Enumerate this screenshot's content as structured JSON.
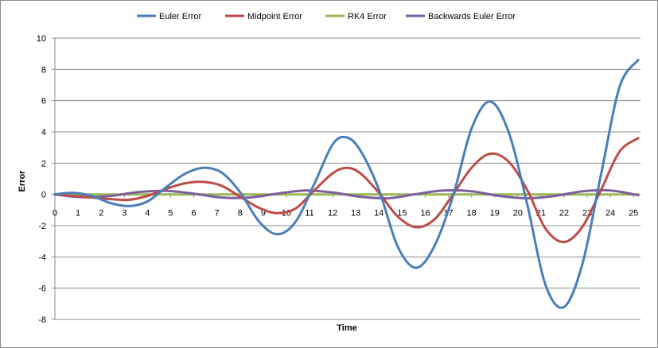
{
  "chart_data": {
    "type": "line",
    "xlabel": "Time",
    "ylabel": "Error",
    "xlim": [
      0,
      25.3
    ],
    "ylim": [
      -8,
      10
    ],
    "x_ticks": [
      "0",
      "1",
      "2",
      "3",
      "4",
      "5",
      "6",
      "7",
      "8",
      "9",
      "10",
      "11",
      "12",
      "13",
      "14",
      "15",
      "16",
      "17",
      "18",
      "19",
      "20",
      "21",
      "22",
      "23",
      "24",
      "25"
    ],
    "y_ticks": [
      "10",
      "8",
      "6",
      "4",
      "2",
      "0",
      "-2",
      "-4",
      "-6",
      "-8"
    ],
    "grid": "horizontal",
    "legend_position": "top",
    "series": [
      {
        "name": "Euler Error",
        "color": "#4a7ebb",
        "x": [
          0,
          0.8,
          1.6,
          2.4,
          3.2,
          4.0,
          4.8,
          5.6,
          6.4,
          7.2,
          8.0,
          8.8,
          9.6,
          10.4,
          11.2,
          12.0,
          12.6,
          13.2,
          14.0,
          14.8,
          15.6,
          16.4,
          17.2,
          18.0,
          18.8,
          19.6,
          20.4,
          21.2,
          22.0,
          22.8,
          23.6,
          24.4,
          25.2
        ],
        "y": [
          0,
          0.1,
          -0.1,
          -0.55,
          -0.75,
          -0.45,
          0.45,
          1.3,
          1.7,
          1.4,
          0.15,
          -1.7,
          -2.55,
          -1.75,
          0.65,
          3.2,
          3.65,
          2.8,
          0.3,
          -3.3,
          -4.7,
          -3.3,
          -0.1,
          4.2,
          5.95,
          4.0,
          -0.6,
          -5.8,
          -7.2,
          -4.4,
          1.3,
          6.9,
          8.6
        ]
      },
      {
        "name": "Midpoint Error",
        "color": "#be4b48",
        "x": [
          0,
          0.8,
          1.6,
          2.4,
          3.2,
          4.0,
          4.8,
          5.6,
          6.4,
          7.2,
          8.0,
          8.8,
          9.6,
          10.4,
          11.2,
          12.0,
          12.6,
          13.2,
          14.0,
          14.8,
          15.6,
          16.4,
          17.2,
          18.0,
          18.8,
          19.6,
          20.4,
          21.2,
          22.0,
          22.8,
          23.6,
          24.4,
          25.2
        ],
        "y": [
          0,
          -0.1,
          -0.2,
          -0.3,
          -0.35,
          -0.1,
          0.35,
          0.7,
          0.8,
          0.55,
          -0.15,
          -0.85,
          -1.2,
          -0.9,
          0.25,
          1.35,
          1.7,
          1.35,
          0.1,
          -1.4,
          -2.1,
          -1.6,
          0.0,
          1.7,
          2.6,
          2.1,
          0.3,
          -2.2,
          -3.05,
          -2.05,
          0.3,
          2.75,
          3.6
        ]
      },
      {
        "name": "RK4 Error",
        "color": "#98b954",
        "x": [
          0,
          25.2
        ],
        "y": [
          0,
          0
        ]
      },
      {
        "name": "Backwards Euler Error",
        "color": "#7d5fa0",
        "x": [
          0,
          1.2,
          2.4,
          3.6,
          4.8,
          6.0,
          7.2,
          8.4,
          9.6,
          10.8,
          12.0,
          13.2,
          14.4,
          15.6,
          16.8,
          18.0,
          19.2,
          20.4,
          21.6,
          22.8,
          24.0,
          25.2
        ],
        "y": [
          0,
          -0.18,
          -0.1,
          0.15,
          0.22,
          0.05,
          -0.2,
          -0.2,
          0.05,
          0.25,
          0.12,
          -0.15,
          -0.25,
          0.02,
          0.25,
          0.2,
          -0.1,
          -0.25,
          -0.1,
          0.2,
          0.25,
          -0.05
        ]
      }
    ]
  }
}
